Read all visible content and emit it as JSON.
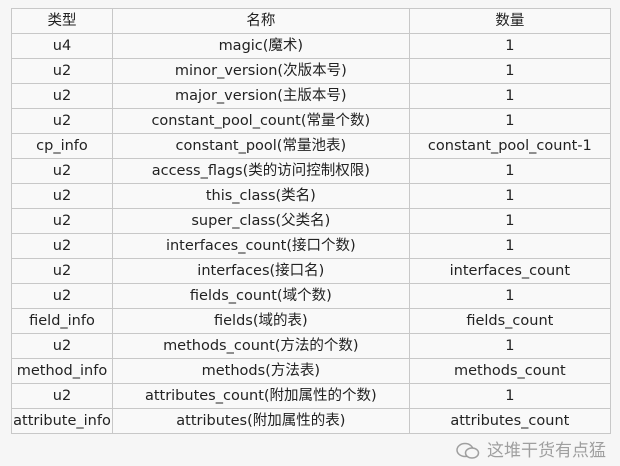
{
  "headers": [
    "类型",
    "名称",
    "数量"
  ],
  "rows": [
    [
      "u4",
      "magic(魔术)",
      "1"
    ],
    [
      "u2",
      "minor_version(次版本号)",
      "1"
    ],
    [
      "u2",
      "major_version(主版本号)",
      "1"
    ],
    [
      "u2",
      "constant_pool_count(常量个数)",
      "1"
    ],
    [
      "cp_info",
      "constant_pool(常量池表)",
      "constant_pool_count-1"
    ],
    [
      "u2",
      "access_flags(类的访问控制权限)",
      "1"
    ],
    [
      "u2",
      "this_class(类名)",
      "1"
    ],
    [
      "u2",
      "super_class(父类名)",
      "1"
    ],
    [
      "u2",
      "interfaces_count(接口个数)",
      "1"
    ],
    [
      "u2",
      "interfaces(接口名)",
      "interfaces_count"
    ],
    [
      "u2",
      "fields_count(域个数)",
      "1"
    ],
    [
      "field_info",
      "fields(域的表)",
      "fields_count"
    ],
    [
      "u2",
      "methods_count(方法的个数)",
      "1"
    ],
    [
      "method_info",
      "methods(方法表)",
      "methods_count"
    ],
    [
      "u2",
      "attributes_count(附加属性的个数)",
      "1"
    ],
    [
      "attribute_info",
      "attributes(附加属性的表)",
      "attributes_count"
    ]
  ],
  "watermark": {
    "text": "这堆干货有点猛",
    "icon": "wechat-icon"
  }
}
